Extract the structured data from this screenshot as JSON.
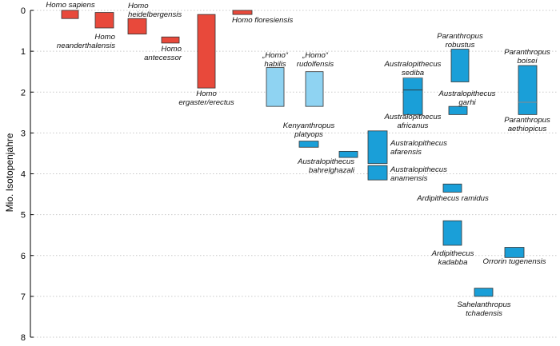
{
  "chart_data": {
    "type": "range-bar",
    "title": "",
    "ylabel": "Mio. Isotopenjahre",
    "ylim": [
      0,
      8
    ],
    "y_ticks": [
      "0",
      "1",
      "2",
      "3",
      "4",
      "5",
      "6",
      "7",
      "8"
    ],
    "grid": true,
    "colors": {
      "homo": "#e8493b",
      "homo_uncertain": "#8fd3f2",
      "other": "#1a9fd8",
      "edge": "#333333",
      "split": "#8a8a8a"
    },
    "series": [
      {
        "name": "Homo sapiens",
        "lines": [
          "Homo sapiens"
        ],
        "group": "homo",
        "start": 0.0,
        "end": 0.2,
        "col": 1
      },
      {
        "name": "Homo neanderthalensis",
        "lines": [
          "Homo",
          "neanderthalensis"
        ],
        "group": "homo",
        "start": 0.05,
        "end": 0.43,
        "col": 2
      },
      {
        "name": "Homo heidelbergensis",
        "lines": [
          "Homo",
          "heidelbergensis"
        ],
        "group": "homo",
        "start": 0.2,
        "end": 0.58,
        "col": 3
      },
      {
        "name": "Homo antecessor",
        "lines": [
          "Homo",
          "antecessor"
        ],
        "group": "homo",
        "start": 0.65,
        "end": 0.8,
        "col": 4
      },
      {
        "name": "Homo ergaster/erectus",
        "lines": [
          "Homo",
          "ergaster/erectus"
        ],
        "group": "homo",
        "start": 0.1,
        "end": 1.9,
        "col": 5
      },
      {
        "name": "Homo floresiensis",
        "lines": [
          "Homo floresiensis"
        ],
        "group": "homo",
        "start": 0.0,
        "end": 0.1,
        "col": 6
      },
      {
        "name": "„Homo“ habilis",
        "lines": [
          "„Homo“",
          "habilis"
        ],
        "group": "homo_uncertain",
        "start": 1.4,
        "end": 2.35,
        "col": 7
      },
      {
        "name": "„Homo“ rudolfensis",
        "lines": [
          "„Homo“",
          "rudolfensis"
        ],
        "group": "homo_uncertain",
        "start": 1.5,
        "end": 2.35,
        "col": 8
      },
      {
        "name": "Kenyanthropus platyops",
        "lines": [
          "Kenyanthropus",
          "platyops"
        ],
        "group": "other",
        "start": 3.2,
        "end": 3.35,
        "col": 8
      },
      {
        "name": "Australopithecus bahrelghazali",
        "lines": [
          "Australopithecus",
          "bahrelghazali"
        ],
        "group": "other",
        "start": 3.45,
        "end": 3.6,
        "col": 9
      },
      {
        "name": "Australopithecus afarensis",
        "lines": [
          "Australopithecus",
          "afarensis"
        ],
        "group": "other",
        "start": 2.95,
        "end": 3.75,
        "col": 10
      },
      {
        "name": "Australopithecus anamensis",
        "lines": [
          "Australopithecus",
          "anamensis"
        ],
        "group": "other",
        "start": 3.8,
        "end": 4.15,
        "col": 10
      },
      {
        "name": "Australopithecus sediba",
        "lines": [
          "Australopithecus",
          "sediba"
        ],
        "group": "other",
        "start": 1.65,
        "end": 1.95,
        "col": 11
      },
      {
        "name": "Australopithecus africanus",
        "lines": [
          "Australopithecus",
          "africanus"
        ],
        "group": "other",
        "start": 1.95,
        "end": 2.55,
        "col": 11
      },
      {
        "name": "Ardipithecus ramidus",
        "lines": [
          "Ardipithecus ramidus"
        ],
        "group": "other",
        "start": 4.25,
        "end": 4.45,
        "col": 12
      },
      {
        "name": "Ardipithecus kadabba",
        "lines": [
          "Ardipithecus",
          "kadabba"
        ],
        "group": "other",
        "start": 5.15,
        "end": 5.75,
        "col": 12
      },
      {
        "name": "Paranthropus robustus",
        "lines": [
          "Paranthropus",
          "robustus"
        ],
        "group": "other",
        "start": 0.95,
        "end": 1.75,
        "col": 13
      },
      {
        "name": "Australopithecus garhi",
        "lines": [
          "Australopithecus",
          "garhi"
        ],
        "group": "other",
        "start": 2.35,
        "end": 2.55,
        "col": 14
      },
      {
        "name": "Sahelanthropus tchadensis",
        "lines": [
          "Sahelanthropus",
          "tchadensis"
        ],
        "group": "other",
        "start": 6.8,
        "end": 7.0,
        "col": 14
      },
      {
        "name": "Orrorin tugenensis",
        "lines": [
          "Orrorin tugenensis"
        ],
        "group": "other",
        "start": 5.8,
        "end": 6.05,
        "col": 15
      },
      {
        "name": "Paranthropus boisei",
        "lines": [
          "Paranthropus",
          "boisei"
        ],
        "group": "other",
        "start": 1.35,
        "end": 2.25,
        "col": 16
      },
      {
        "name": "Paranthropus aethiopicus",
        "lines": [
          "Paranthropus",
          "aethiopicus"
        ],
        "group": "other",
        "start": 2.25,
        "end": 2.55,
        "col": 16
      }
    ]
  }
}
